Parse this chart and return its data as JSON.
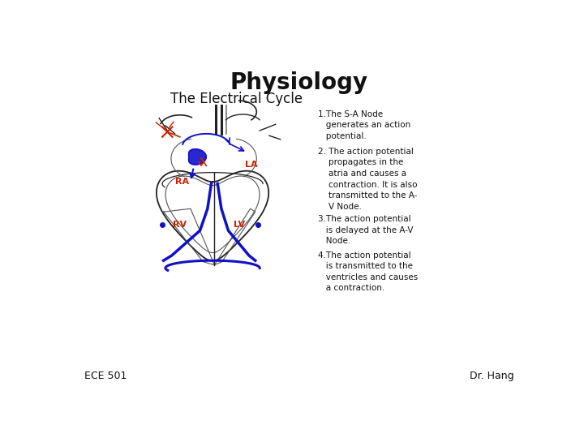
{
  "title": "Physiology",
  "subtitle": "The Electrical Cycle",
  "title_fontsize": 20,
  "subtitle_fontsize": 12,
  "background_color": "#ffffff",
  "footer_left": "ECE 501",
  "footer_right": "Dr. Hang",
  "footer_fontsize": 9,
  "point1": "1.The S-A Node\n   generates an action\n   potential.",
  "point2": "2. The action potential\n    propagates in the\n    atria and causes a\n    contraction. It is also\n    transmitted to the A-\n    V Node.",
  "point3": "3.The action potential\n   is delayed at the A-V\n   Node.",
  "point4": "4.The action potential\n   is transmitted to the\n   ventricles and causes\n   a contraction.",
  "heart_label_color": "#cc2200",
  "text_color": "#111111",
  "blue_color": "#1010cc",
  "red_color": "#cc2200",
  "dark_color": "#222222"
}
